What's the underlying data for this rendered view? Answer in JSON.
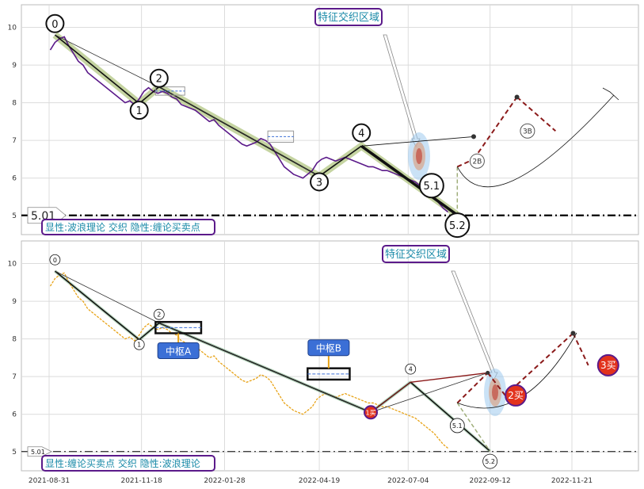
{
  "chart_data": [
    {
      "type": "line",
      "panel": "top",
      "ylim": [
        4.5,
        10.6
      ],
      "yticks": [
        5,
        6,
        7,
        8,
        9,
        10
      ],
      "grid": true,
      "series": [
        {
          "kind": "price",
          "color": "#5b1a8a",
          "x": [
            "2021-09-01",
            "2021-09-05",
            "2021-09-09",
            "2021-09-13",
            "2021-09-17",
            "2021-09-21",
            "2021-09-25",
            "2021-09-29",
            "2021-10-03",
            "2021-10-07",
            "2021-10-11",
            "2021-10-15",
            "2021-10-19",
            "2021-10-23",
            "2021-10-27",
            "2021-10-31",
            "2021-11-04",
            "2021-11-08",
            "2021-11-12",
            "2021-11-16",
            "2021-11-20",
            "2021-11-24",
            "2021-11-28",
            "2021-12-02",
            "2021-12-06",
            "2021-12-10",
            "2021-12-14",
            "2021-12-18",
            "2021-12-22",
            "2021-12-26",
            "2021-12-30",
            "2022-01-03",
            "2022-01-07",
            "2022-01-11",
            "2022-01-15",
            "2022-01-19",
            "2022-01-23",
            "2022-01-27",
            "2022-01-31",
            "2022-02-04",
            "2022-02-08",
            "2022-02-12",
            "2022-02-16",
            "2022-02-20",
            "2022-02-24",
            "2022-02-28",
            "2022-03-04",
            "2022-03-08",
            "2022-03-12",
            "2022-03-16",
            "2022-03-20",
            "2022-03-24",
            "2022-03-28",
            "2022-04-01",
            "2022-04-05",
            "2022-04-09",
            "2022-04-13",
            "2022-04-17",
            "2022-04-21",
            "2022-04-25",
            "2022-04-29",
            "2022-05-03",
            "2022-05-07",
            "2022-05-11",
            "2022-05-15",
            "2022-05-19",
            "2022-05-23",
            "2022-05-27",
            "2022-05-31",
            "2022-06-04",
            "2022-06-08",
            "2022-06-12",
            "2022-06-16",
            "2022-06-20",
            "2022-06-24",
            "2022-06-28",
            "2022-07-02",
            "2022-07-06",
            "2022-07-10",
            "2022-07-14",
            "2022-07-18",
            "2022-07-22",
            "2022-07-26",
            "2022-07-30",
            "2022-08-03",
            "2022-08-07"
          ],
          "y": [
            9.4,
            9.6,
            9.7,
            9.75,
            9.5,
            9.3,
            9.1,
            9.0,
            8.8,
            8.7,
            8.6,
            8.5,
            8.4,
            8.3,
            8.2,
            8.1,
            8.0,
            8.05,
            7.95,
            8.1,
            8.3,
            8.4,
            8.3,
            8.25,
            8.3,
            8.25,
            8.15,
            8.1,
            7.95,
            7.9,
            7.85,
            7.8,
            7.7,
            7.6,
            7.5,
            7.55,
            7.4,
            7.3,
            7.2,
            7.1,
            7.0,
            6.9,
            6.85,
            6.9,
            6.95,
            7.05,
            7.0,
            6.9,
            6.7,
            6.5,
            6.3,
            6.2,
            6.1,
            6.05,
            6.0,
            6.1,
            6.2,
            6.4,
            6.5,
            6.55,
            6.5,
            6.45,
            6.5,
            6.55,
            6.5,
            6.45,
            6.4,
            6.35,
            6.3,
            6.3,
            6.25,
            6.2,
            6.2,
            6.15,
            6.1,
            6.05,
            6.0,
            5.95,
            5.9,
            5.8,
            5.7,
            5.6,
            5.5,
            5.35,
            5.2,
            5.1
          ]
        },
        {
          "kind": "wave-segments",
          "color": "#111111",
          "x": [
            "2021-09-05",
            "2021-11-16",
            "2021-12-03",
            "2022-04-19",
            "2022-05-25",
            "2022-08-15"
          ],
          "y": [
            9.8,
            7.98,
            8.42,
            6.05,
            6.85,
            5.02
          ]
        },
        {
          "kind": "projection-dashed",
          "color": "#8b1a1a",
          "x": [
            "2022-08-15",
            "2022-08-29",
            "2022-10-05",
            "2022-11-07"
          ],
          "y": [
            6.3,
            6.5,
            8.15,
            7.25
          ]
        }
      ],
      "hline": {
        "y": 5.01,
        "label": "5.01",
        "style": "dash-dot"
      },
      "wave_labels": [
        {
          "text": "0",
          "x": "2021-09-05",
          "y": 10.1
        },
        {
          "text": "1",
          "x": "2021-11-16",
          "y": 7.8
        },
        {
          "text": "2",
          "x": "2021-12-03",
          "y": 8.65
        },
        {
          "text": "3",
          "x": "2022-04-19",
          "y": 5.9
        },
        {
          "text": "4",
          "x": "2022-05-25",
          "y": 7.2
        },
        {
          "text": "5.1",
          "x": "2022-07-24",
          "y": 5.8
        },
        {
          "text": "5.2",
          "x": "2022-08-15",
          "y": 4.75
        },
        {
          "text": "2B",
          "x": "2022-09-01",
          "y": 6.45
        },
        {
          "text": "3B",
          "x": "2022-10-14",
          "y": 7.25
        }
      ],
      "feature_zone": "特征交织区域",
      "caption": "显性:波浪理论 交织 隐性:缠论买卖点"
    },
    {
      "type": "line",
      "panel": "bottom",
      "ylim": [
        4.5,
        10.6
      ],
      "yticks": [
        5,
        6,
        7,
        8,
        9,
        10
      ],
      "xticks": [
        "2021-08-31",
        "2021-11-18",
        "2022-01-28",
        "2022-04-19",
        "2022-07-04",
        "2022-09-12",
        "2022-11-21"
      ],
      "grid": true,
      "series": [
        {
          "kind": "price",
          "color": "#e8a317",
          "x": [
            "2021-09-01",
            "2021-09-05",
            "2021-09-09",
            "2021-09-13",
            "2021-09-17",
            "2021-09-21",
            "2021-09-25",
            "2021-09-29",
            "2021-10-03",
            "2021-10-07",
            "2021-10-11",
            "2021-10-15",
            "2021-10-19",
            "2021-10-23",
            "2021-10-27",
            "2021-10-31",
            "2021-11-04",
            "2021-11-08",
            "2021-11-12",
            "2021-11-16",
            "2021-11-20",
            "2021-11-24",
            "2021-11-28",
            "2021-12-02",
            "2021-12-06",
            "2021-12-10",
            "2021-12-14",
            "2021-12-18",
            "2021-12-22",
            "2021-12-26",
            "2021-12-30",
            "2022-01-03",
            "2022-01-07",
            "2022-01-11",
            "2022-01-15",
            "2022-01-19",
            "2022-01-23",
            "2022-01-27",
            "2022-01-31",
            "2022-02-04",
            "2022-02-08",
            "2022-02-12",
            "2022-02-16",
            "2022-02-20",
            "2022-02-24",
            "2022-02-28",
            "2022-03-04",
            "2022-03-08",
            "2022-03-12",
            "2022-03-16",
            "2022-03-20",
            "2022-03-24",
            "2022-03-28",
            "2022-04-01",
            "2022-04-05",
            "2022-04-09",
            "2022-04-13",
            "2022-04-17",
            "2022-04-21",
            "2022-04-25",
            "2022-04-29",
            "2022-05-03",
            "2022-05-07",
            "2022-05-11",
            "2022-05-15",
            "2022-05-19",
            "2022-05-23",
            "2022-05-27",
            "2022-05-31",
            "2022-06-04",
            "2022-06-08",
            "2022-06-12",
            "2022-06-16",
            "2022-06-20",
            "2022-06-24",
            "2022-06-28",
            "2022-07-02",
            "2022-07-06",
            "2022-07-10",
            "2022-07-14",
            "2022-07-18",
            "2022-07-22",
            "2022-07-26",
            "2022-07-30",
            "2022-08-03",
            "2022-08-07"
          ],
          "y": [
            9.4,
            9.6,
            9.7,
            9.75,
            9.5,
            9.3,
            9.1,
            9.0,
            8.8,
            8.7,
            8.6,
            8.5,
            8.4,
            8.3,
            8.2,
            8.1,
            8.0,
            8.05,
            7.95,
            8.1,
            8.3,
            8.4,
            8.3,
            8.25,
            8.3,
            8.25,
            8.15,
            8.1,
            7.95,
            7.9,
            7.85,
            7.8,
            7.7,
            7.6,
            7.5,
            7.55,
            7.4,
            7.3,
            7.2,
            7.1,
            7.0,
            6.9,
            6.85,
            6.9,
            6.95,
            7.05,
            7.0,
            6.9,
            6.7,
            6.5,
            6.3,
            6.2,
            6.1,
            6.05,
            6.0,
            6.1,
            6.2,
            6.4,
            6.5,
            6.55,
            6.5,
            6.45,
            6.5,
            6.55,
            6.5,
            6.45,
            6.4,
            6.35,
            6.3,
            6.3,
            6.25,
            6.2,
            6.2,
            6.15,
            6.1,
            6.05,
            6.0,
            5.95,
            5.9,
            5.8,
            5.7,
            5.6,
            5.5,
            5.35,
            5.2,
            5.1
          ]
        },
        {
          "kind": "wave-segments",
          "color": "#111111",
          "x": [
            "2021-09-05",
            "2021-11-16",
            "2021-12-03",
            "2022-06-02",
            "2022-07-06",
            "2022-09-12"
          ],
          "y": [
            9.8,
            7.98,
            8.42,
            6.05,
            6.85,
            5.02
          ]
        },
        {
          "kind": "projection-dashed",
          "color": "#8b1a1a",
          "x": [
            "2022-08-15",
            "2022-09-10",
            "2022-09-25",
            "2022-11-22",
            "2022-12-05"
          ],
          "y": [
            6.3,
            7.1,
            6.5,
            8.15,
            7.3
          ]
        }
      ],
      "hline": {
        "y": 5.01,
        "label": "5.01",
        "style": "dash-dot"
      },
      "wave_labels": [
        {
          "text": "0",
          "x": "2021-09-05",
          "y": 10.1
        },
        {
          "text": "1",
          "x": "2021-11-16",
          "y": 7.85
        },
        {
          "text": "2",
          "x": "2021-12-03",
          "y": 8.65
        },
        {
          "text": "4",
          "x": "2022-07-06",
          "y": 7.2
        },
        {
          "text": "5.1",
          "x": "2022-08-15",
          "y": 5.7
        },
        {
          "text": "5.2",
          "x": "2022-09-12",
          "y": 4.75
        }
      ],
      "pivots": [
        {
          "label": "中枢A",
          "x0": "2021-11-30",
          "x1": "2022-01-08",
          "y0": 8.15,
          "y1": 8.45
        },
        {
          "label": "中枢B",
          "x0": "2022-04-09",
          "x1": "2022-05-15",
          "y0": 6.92,
          "y1": 7.22
        }
      ],
      "buy_points": [
        {
          "text": "1买",
          "x": "2022-06-02",
          "y": 6.05
        },
        {
          "text": "2买",
          "x": "2022-10-04",
          "y": 6.5
        },
        {
          "text": "3买",
          "x": "2022-12-22",
          "y": 7.3
        }
      ],
      "feature_zone": "特征交织区域",
      "caption": "显性:缠论买卖点 交织 隐性:波浪理论"
    }
  ],
  "colors": {
    "purple_border": "#5b1a8a",
    "caption_text": "#1a8aa8",
    "pivot_box_fill": "#3b6fd6",
    "buy_point_fill": "#e2321c",
    "projection_red": "#8b1a1a",
    "highlight_green": "#b7c98a"
  }
}
